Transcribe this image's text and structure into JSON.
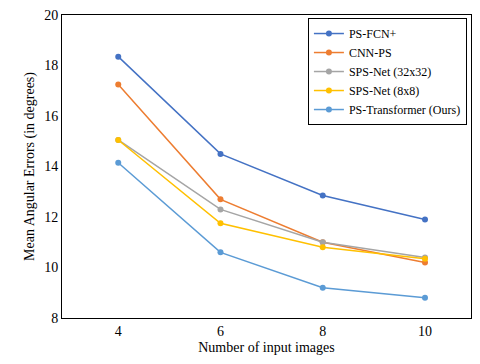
{
  "chart_data": {
    "type": "line",
    "x_label": "Number of input images",
    "y_label": "Mean Angular Errors (in degrees)",
    "categories": [
      "4",
      "6",
      "8",
      "10"
    ],
    "series": [
      {
        "name": "PS-FCN+",
        "color": "#4472c4",
        "values": [
          18.35,
          14.5,
          12.85,
          11.9
        ]
      },
      {
        "name": "CNN-PS",
        "color": "#ed7d31",
        "values": [
          17.25,
          12.7,
          11.0,
          10.2
        ]
      },
      {
        "name": "SPS-Net (32x32)",
        "color": "#a5a5a5",
        "values": [
          15.05,
          12.3,
          11.0,
          10.4
        ]
      },
      {
        "name": "SPS-Net (8x8)",
        "color": "#ffc000",
        "values": [
          15.05,
          11.75,
          10.8,
          10.35
        ]
      },
      {
        "name": "PS-Transformer (Ours)",
        "color": "#5b9bd5",
        "values": [
          14.15,
          10.6,
          9.2,
          8.8
        ]
      }
    ],
    "ylim": [
      8,
      20
    ],
    "yticks": [
      8,
      10,
      12,
      14,
      16,
      18,
      20
    ],
    "grid": false,
    "legend": "top-right",
    "marker": "circle"
  }
}
